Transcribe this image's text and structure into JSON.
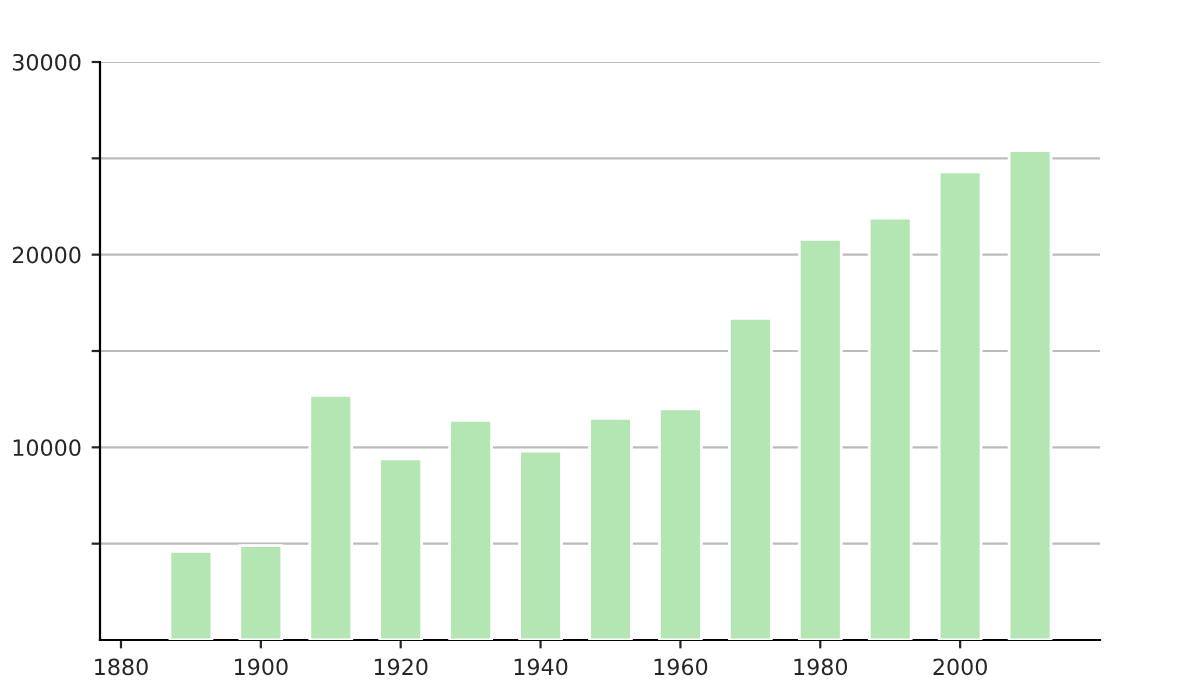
{
  "chart_data": {
    "type": "bar",
    "x": [
      1890,
      1900,
      1910,
      1920,
      1930,
      1940,
      1950,
      1960,
      1970,
      1980,
      1990,
      2000,
      2010
    ],
    "values": [
      4600,
      4900,
      12700,
      9400,
      11400,
      9800,
      11500,
      12000,
      16700,
      20800,
      21900,
      24300,
      25400
    ],
    "color": "#b3e6b3",
    "xlim": [
      1877,
      2020
    ],
    "xticks": [
      1880,
      1900,
      1920,
      1940,
      1960,
      1980,
      2000
    ],
    "ylim": [
      0,
      30000
    ],
    "yticks": [
      {
        "value": 5000,
        "label": null
      },
      10000,
      {
        "value": 15000,
        "label": null
      },
      20000,
      {
        "value": 25000,
        "label": null
      },
      30000
    ],
    "grid": "y"
  }
}
